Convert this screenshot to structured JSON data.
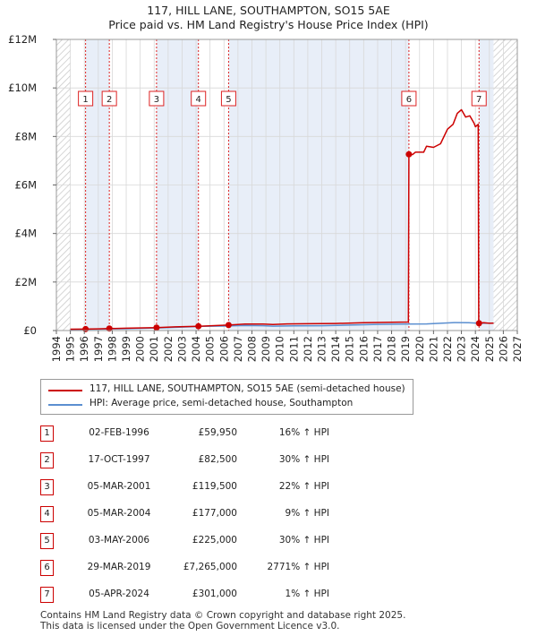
{
  "title_line1": "117, HILL LANE, SOUTHAMPTON, SO15 5AE",
  "title_line2": "Price paid vs. HM Land Registry's House Price Index (HPI)",
  "colors": {
    "property_line": "#cc0000",
    "hpi_line": "#5b8fd0",
    "shade": "#e8eef8",
    "grid": "#d8d8d8",
    "marker_line": "#dd2222"
  },
  "chart_data": {
    "type": "line",
    "title": "117, HILL LANE, SOUTHAMPTON, SO15 5AE — Price paid vs. HM Land Registry's House Price Index (HPI)",
    "xlabel": "",
    "ylabel": "",
    "xlim": [
      1994,
      2027
    ],
    "ylim": [
      0,
      12000000
    ],
    "x_ticks": [
      "1994",
      "1995",
      "1996",
      "1997",
      "1998",
      "1999",
      "2000",
      "2001",
      "2002",
      "2003",
      "2004",
      "2005",
      "2006",
      "2007",
      "2008",
      "2009",
      "2010",
      "2011",
      "2012",
      "2013",
      "2014",
      "2015",
      "2016",
      "2017",
      "2018",
      "2019",
      "2020",
      "2021",
      "2022",
      "2023",
      "2024",
      "2025",
      "2026",
      "2027"
    ],
    "y_ticks": [
      {
        "value": 0,
        "label": "£0"
      },
      {
        "value": 2000000,
        "label": "£2M"
      },
      {
        "value": 4000000,
        "label": "£4M"
      },
      {
        "value": 6000000,
        "label": "£6M"
      },
      {
        "value": 8000000,
        "label": "£8M"
      },
      {
        "value": 10000000,
        "label": "£10M"
      },
      {
        "value": 12000000,
        "label": "£12M"
      }
    ],
    "grid": true,
    "hatched_before": 1995.0,
    "hatched_after": 2025.3,
    "series": [
      {
        "name": "117, HILL LANE, SOUTHAMPTON, SO15 5AE (semi-detached house)",
        "points": [
          [
            1995.0,
            55000
          ],
          [
            1996.09,
            59950
          ],
          [
            1997.0,
            70000
          ],
          [
            1997.79,
            82500
          ],
          [
            1999.0,
            95000
          ],
          [
            2001.17,
            119500
          ],
          [
            2002.5,
            150000
          ],
          [
            2004.17,
            177000
          ],
          [
            2005.5,
            205000
          ],
          [
            2006.33,
            225000
          ],
          [
            2007.5,
            265000
          ],
          [
            2008.8,
            270000
          ],
          [
            2009.5,
            250000
          ],
          [
            2010.5,
            275000
          ],
          [
            2012.0,
            280000
          ],
          [
            2014.0,
            290000
          ],
          [
            2016.0,
            320000
          ],
          [
            2018.0,
            345000
          ],
          [
            2019.2,
            350000
          ],
          [
            2019.24,
            7265000
          ],
          [
            2019.5,
            7250000
          ],
          [
            2019.7,
            7350000
          ],
          [
            2020.3,
            7350000
          ],
          [
            2020.5,
            7600000
          ],
          [
            2021.0,
            7550000
          ],
          [
            2021.5,
            7700000
          ],
          [
            2022.0,
            8300000
          ],
          [
            2022.4,
            8500000
          ],
          [
            2022.7,
            8950000
          ],
          [
            2023.0,
            9100000
          ],
          [
            2023.3,
            8800000
          ],
          [
            2023.6,
            8850000
          ],
          [
            2023.9,
            8550000
          ],
          [
            2024.0,
            8400000
          ],
          [
            2024.2,
            8500000
          ],
          [
            2024.24,
            301000
          ],
          [
            2024.6,
            320000
          ],
          [
            2025.0,
            300000
          ],
          [
            2025.3,
            305000
          ]
        ]
      },
      {
        "name": "HPI: Average price, semi-detached house, Southampton",
        "points": [
          [
            1995.0,
            48000
          ],
          [
            1997.0,
            60000
          ],
          [
            1999.0,
            75000
          ],
          [
            2001.0,
            100000
          ],
          [
            2003.0,
            145000
          ],
          [
            2004.5,
            175000
          ],
          [
            2006.0,
            185000
          ],
          [
            2007.5,
            205000
          ],
          [
            2008.8,
            200000
          ],
          [
            2009.5,
            180000
          ],
          [
            2011.0,
            195000
          ],
          [
            2013.0,
            200000
          ],
          [
            2015.0,
            225000
          ],
          [
            2017.0,
            255000
          ],
          [
            2019.0,
            270000
          ],
          [
            2020.5,
            275000
          ],
          [
            2021.5,
            300000
          ],
          [
            2022.5,
            330000
          ],
          [
            2023.5,
            320000
          ],
          [
            2024.3,
            300000
          ],
          [
            2025.3,
            305000
          ]
        ]
      }
    ],
    "sales": [
      {
        "id": "1",
        "x": 1996.09,
        "price": 59950
      },
      {
        "id": "2",
        "x": 1997.79,
        "price": 82500
      },
      {
        "id": "3",
        "x": 2001.17,
        "price": 119500
      },
      {
        "id": "4",
        "x": 2004.17,
        "price": 177000
      },
      {
        "id": "5",
        "x": 2006.33,
        "price": 225000
      },
      {
        "id": "6",
        "x": 2019.24,
        "price": 7265000
      },
      {
        "id": "7",
        "x": 2024.26,
        "price": 301000
      }
    ],
    "shaded_intervals": [
      [
        1996.09,
        1997.79
      ],
      [
        2001.17,
        2004.17
      ],
      [
        2006.33,
        2019.24
      ],
      [
        2024.26,
        2025.3
      ]
    ]
  },
  "legend": {
    "items": [
      {
        "label": "117, HILL LANE, SOUTHAMPTON, SO15 5AE (semi-detached house)"
      },
      {
        "label": "HPI: Average price, semi-detached house, Southampton"
      }
    ]
  },
  "transactions": [
    {
      "id": "1",
      "date": "02-FEB-1996",
      "price": "£59,950",
      "hpi": "16% ↑ HPI"
    },
    {
      "id": "2",
      "date": "17-OCT-1997",
      "price": "£82,500",
      "hpi": "30% ↑ HPI"
    },
    {
      "id": "3",
      "date": "05-MAR-2001",
      "price": "£119,500",
      "hpi": "22% ↑ HPI"
    },
    {
      "id": "4",
      "date": "05-MAR-2004",
      "price": "£177,000",
      "hpi": "9% ↑ HPI"
    },
    {
      "id": "5",
      "date": "03-MAY-2006",
      "price": "£225,000",
      "hpi": "30% ↑ HPI"
    },
    {
      "id": "6",
      "date": "29-MAR-2019",
      "price": "£7,265,000",
      "hpi": "2771% ↑ HPI"
    },
    {
      "id": "7",
      "date": "05-APR-2024",
      "price": "£301,000",
      "hpi": "1% ↑ HPI"
    }
  ],
  "footer": {
    "line1": "Contains HM Land Registry data © Crown copyright and database right 2025.",
    "line2": "This data is licensed under the Open Government Licence v3.0."
  }
}
